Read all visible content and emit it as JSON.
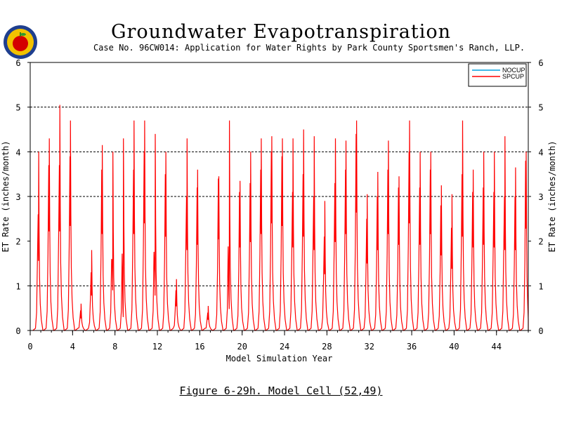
{
  "header": {
    "title": "Groundwater Evapotranspiration",
    "subtitle": "Case No. 96CW014: Application for Water Rights by Park County Sportsmen's Ranch, LLP."
  },
  "caption": "Figure 6-29h.  Model Cell (52,49)",
  "logo": {
    "icon": "apple-seal-logo"
  },
  "chart_data": {
    "type": "line",
    "xlabel": "Model Simulation Year",
    "ylabel": "ET Rate (inches/month)",
    "xlim": [
      0,
      47
    ],
    "ylim": [
      0,
      6
    ],
    "xticks": [
      0,
      4,
      8,
      12,
      16,
      20,
      24,
      28,
      32,
      36,
      40,
      44
    ],
    "yticks": [
      0,
      1,
      2,
      3,
      4,
      5,
      6
    ],
    "grid": "horizontal dashed at 1,3,4,5",
    "legend_position": "top-right",
    "series": [
      {
        "name": "NOCUP",
        "color": "#00a0e0"
      },
      {
        "name": "SPCUP",
        "color": "#ff0000"
      }
    ],
    "annual_peak_year": [
      0.8,
      1.8,
      2.8,
      3.8,
      4.8,
      5.8,
      6.8,
      7.8,
      8.8,
      9.8,
      10.8,
      11.8,
      12.8,
      13.8,
      14.8,
      15.8,
      16.8,
      17.8,
      18.8,
      19.8,
      20.8,
      21.8,
      22.8,
      23.8,
      24.8,
      25.8,
      26.8,
      27.8,
      28.8,
      29.8,
      30.8,
      31.8,
      32.8,
      33.8,
      34.8,
      35.8,
      36.8,
      37.8,
      38.8,
      39.8,
      40.8,
      41.8,
      42.8,
      43.8,
      44.8,
      45.8,
      46.8
    ],
    "annual_peak_et": [
      4.0,
      4.3,
      5.05,
      4.7,
      0.6,
      1.8,
      4.15,
      4.0,
      4.3,
      4.7,
      4.7,
      4.4,
      4.0,
      1.15,
      4.3,
      3.6,
      0.55,
      3.45,
      4.7,
      3.35,
      4.0,
      4.3,
      4.35,
      4.3,
      4.3,
      4.5,
      4.35,
      2.9,
      4.3,
      4.25,
      4.7,
      3.05,
      3.55,
      4.25,
      3.45,
      4.7,
      4.0,
      4.0,
      3.25,
      3.05,
      4.7,
      3.6,
      4.0,
      4.0,
      4.35,
      3.65,
      4.0
    ],
    "annual_secondary_et": [
      2.6,
      3.7,
      3.7,
      3.9,
      0.45,
      1.3,
      3.6,
      1.5,
      0.5,
      3.6,
      4.0,
      1.3,
      3.5,
      0.9,
      3.0,
      3.2,
      0.4,
      3.4,
      0.8,
      3.1,
      3.3,
      3.6,
      4.0,
      3.9,
      3.1,
      3.5,
      3.0,
      2.1,
      3.3,
      3.6,
      4.4,
      2.5,
      3.0,
      3.6,
      3.2,
      4.0,
      3.2,
      3.6,
      2.8,
      2.3,
      3.5,
      3.1,
      3.2,
      3.1,
      3.0,
      3.0,
      3.8
    ]
  }
}
